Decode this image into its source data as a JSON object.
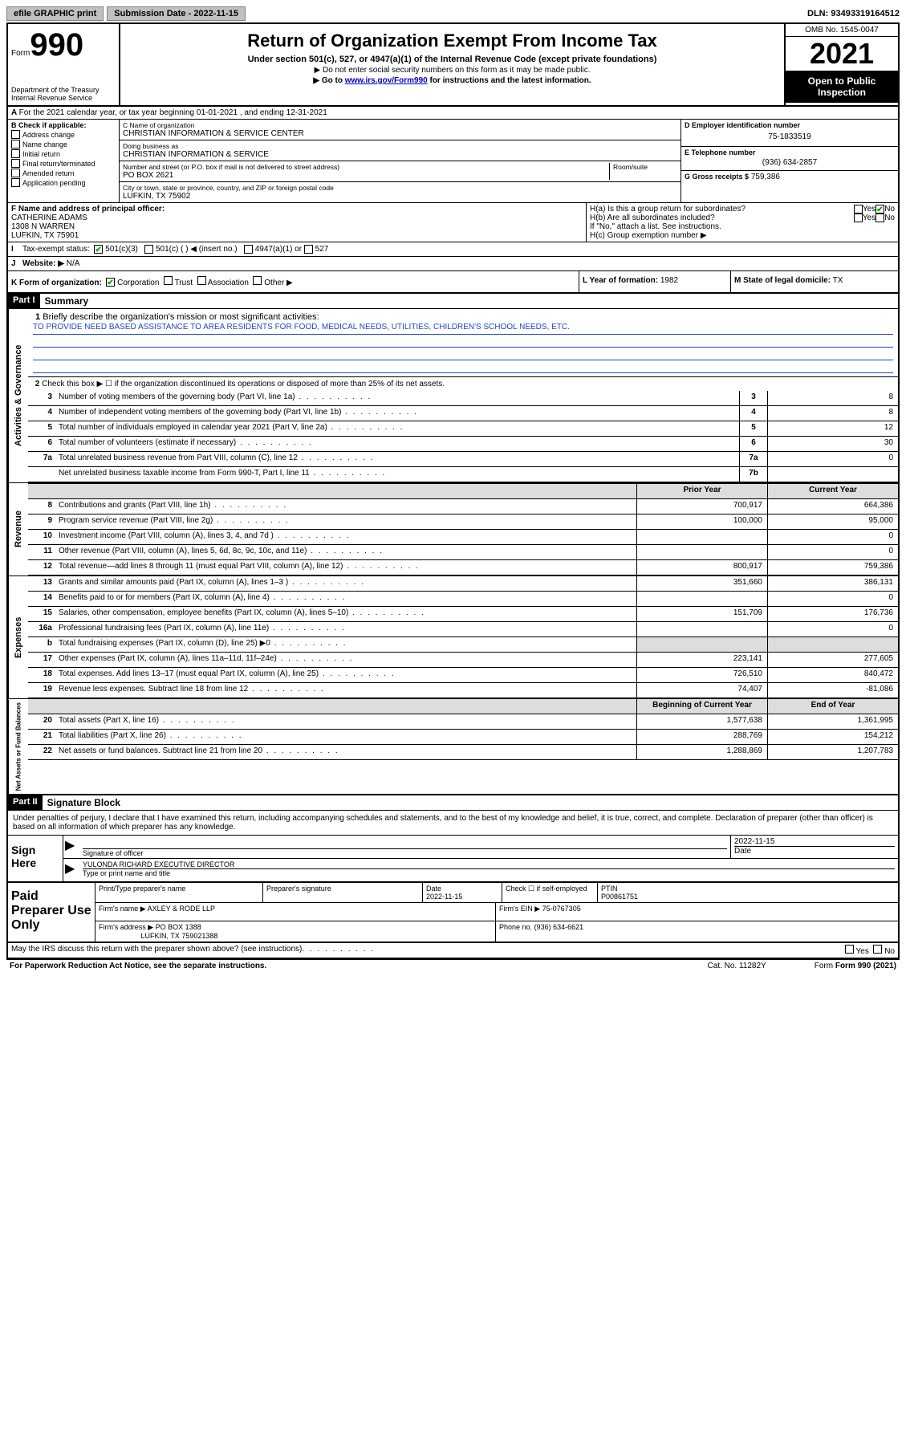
{
  "topbar": {
    "efile_label": "efile GRAPHIC print",
    "sub_date_lbl": "Submission Date - 2022-11-15",
    "dln": "DLN: 93493319164512"
  },
  "header": {
    "form_word": "Form",
    "form_num": "990",
    "dept": "Department of the Treasury",
    "irs": "Internal Revenue Service",
    "title": "Return of Organization Exempt From Income Tax",
    "sub": "Under section 501(c), 527, or 4947(a)(1) of the Internal Revenue Code (except private foundations)",
    "note1": "▶ Do not enter social security numbers on this form as it may be made public.",
    "note2_pre": "▶ Go to ",
    "note2_link": "www.irs.gov/Form990",
    "note2_post": " for instructions and the latest information.",
    "omb": "OMB No. 1545-0047",
    "year": "2021",
    "pub": "Open to Public Inspection"
  },
  "periodA": "For the 2021 calendar year, or tax year beginning 01-01-2021   , and ending 12-31-2021",
  "boxB": {
    "hdr": "B Check if applicable:",
    "opts": [
      "Address change",
      "Name change",
      "Initial return",
      "Final return/terminated",
      "Amended return",
      "Application pending"
    ]
  },
  "boxC": {
    "name_lbl": "C Name of organization",
    "name": "CHRISTIAN INFORMATION & SERVICE CENTER",
    "dba_lbl": "Doing business as",
    "dba": "CHRISTIAN INFORMATION & SERVICE",
    "addr_lbl": "Number and street (or P.O. box if mail is not delivered to street address)",
    "room_lbl": "Room/suite",
    "addr": "PO BOX 2621",
    "city_lbl": "City or town, state or province, country, and ZIP or foreign postal code",
    "city": "LUFKIN, TX  75902"
  },
  "boxD": {
    "lbl": "D Employer identification number",
    "val": "75-1833519"
  },
  "boxE": {
    "lbl": "E Telephone number",
    "val": "(936) 634-2857"
  },
  "boxG": {
    "lbl": "G Gross receipts $",
    "val": "759,386"
  },
  "boxF": {
    "lbl": "F Name and address of principal officer:",
    "name": "CATHERINE ADAMS",
    "addr1": "1308 N WARREN",
    "addr2": "LUFKIN, TX  75901"
  },
  "boxH": {
    "a": "H(a)  Is this a group return for subordinates?",
    "b": "H(b)  Are all subordinates included?",
    "note": "If \"No,\" attach a list. See instructions.",
    "c": "H(c)  Group exemption number ▶",
    "yes": "Yes",
    "no": "No"
  },
  "boxI": {
    "lbl": "Tax-exempt status:",
    "o1": "501(c)(3)",
    "o2": "501(c) (  ) ◀ (insert no.)",
    "o3": "4947(a)(1) or",
    "o4": "527"
  },
  "boxJ": {
    "lbl": "Website: ▶",
    "val": "N/A"
  },
  "boxK": {
    "lbl": "K Form of organization:",
    "corp": "Corporation",
    "trust": "Trust",
    "assoc": "Association",
    "other": "Other ▶"
  },
  "boxL": {
    "lbl": "L Year of formation:",
    "val": "1982"
  },
  "boxM": {
    "lbl": "M State of legal domicile:",
    "val": "TX"
  },
  "part1": {
    "hdr": "Part I",
    "title": "Summary",
    "line1_lbl": "Briefly describe the organization's mission or most significant activities:",
    "mission": "TO PROVIDE NEED BASED ASSISTANCE TO AREA RESIDENTS FOR FOOD, MEDICAL NEEDS, UTILITIES, CHILDREN'S SCHOOL NEEDS, ETC.",
    "line2": "Check this box ▶ ☐  if the organization discontinued its operations or disposed of more than 25% of its net assets.",
    "rows": [
      {
        "n": "3",
        "d": "Number of voting members of the governing body (Part VI, line 1a)",
        "box": "3",
        "v": "8"
      },
      {
        "n": "4",
        "d": "Number of independent voting members of the governing body (Part VI, line 1b)",
        "box": "4",
        "v": "8"
      },
      {
        "n": "5",
        "d": "Total number of individuals employed in calendar year 2021 (Part V, line 2a)",
        "box": "5",
        "v": "12"
      },
      {
        "n": "6",
        "d": "Total number of volunteers (estimate if necessary)",
        "box": "6",
        "v": "30"
      },
      {
        "n": "7a",
        "d": "Total unrelated business revenue from Part VIII, column (C), line 12",
        "box": "7a",
        "v": "0"
      },
      {
        "n": "",
        "d": "Net unrelated business taxable income from Form 990-T, Part I, line 11",
        "box": "7b",
        "v": ""
      }
    ],
    "fin_hdr1": "Prior Year",
    "fin_hdr2": "Current Year",
    "rev": [
      {
        "n": "8",
        "d": "Contributions and grants (Part VIII, line 1h)",
        "p": "700,917",
        "c": "664,386"
      },
      {
        "n": "9",
        "d": "Program service revenue (Part VIII, line 2g)",
        "p": "100,000",
        "c": "95,000"
      },
      {
        "n": "10",
        "d": "Investment income (Part VIII, column (A), lines 3, 4, and 7d )",
        "p": "",
        "c": "0"
      },
      {
        "n": "11",
        "d": "Other revenue (Part VIII, column (A), lines 5, 6d, 8c, 9c, 10c, and 11e)",
        "p": "",
        "c": "0"
      },
      {
        "n": "12",
        "d": "Total revenue—add lines 8 through 11 (must equal Part VIII, column (A), line 12)",
        "p": "800,917",
        "c": "759,386"
      }
    ],
    "exp": [
      {
        "n": "13",
        "d": "Grants and similar amounts paid (Part IX, column (A), lines 1–3 )",
        "p": "351,660",
        "c": "386,131"
      },
      {
        "n": "14",
        "d": "Benefits paid to or for members (Part IX, column (A), line 4)",
        "p": "",
        "c": "0"
      },
      {
        "n": "15",
        "d": "Salaries, other compensation, employee benefits (Part IX, column (A), lines 5–10)",
        "p": "151,709",
        "c": "176,736"
      },
      {
        "n": "16a",
        "d": "Professional fundraising fees (Part IX, column (A), line 11e)",
        "p": "",
        "c": "0"
      },
      {
        "n": "b",
        "d": "Total fundraising expenses (Part IX, column (D), line 25) ▶0",
        "p": "",
        "c": "",
        "grey": true
      },
      {
        "n": "17",
        "d": "Other expenses (Part IX, column (A), lines 11a–11d, 11f–24e)",
        "p": "223,141",
        "c": "277,605"
      },
      {
        "n": "18",
        "d": "Total expenses. Add lines 13–17 (must equal Part IX, column (A), line 25)",
        "p": "726,510",
        "c": "840,472"
      },
      {
        "n": "19",
        "d": "Revenue less expenses. Subtract line 18 from line 12",
        "p": "74,407",
        "c": "-81,086"
      }
    ],
    "na_hdr1": "Beginning of Current Year",
    "na_hdr2": "End of Year",
    "na": [
      {
        "n": "20",
        "d": "Total assets (Part X, line 16)",
        "p": "1,577,638",
        "c": "1,361,995"
      },
      {
        "n": "21",
        "d": "Total liabilities (Part X, line 26)",
        "p": "288,769",
        "c": "154,212"
      },
      {
        "n": "22",
        "d": "Net assets or fund balances. Subtract line 21 from line 20",
        "p": "1,288,869",
        "c": "1,207,783"
      }
    ],
    "side1": "Activities & Governance",
    "side2": "Revenue",
    "side3": "Expenses",
    "side4": "Net Assets or Fund Balances"
  },
  "part2": {
    "hdr": "Part II",
    "title": "Signature Block",
    "penalty": "Under penalties of perjury, I declare that I have examined this return, including accompanying schedules and statements, and to the best of my knowledge and belief, it is true, correct, and complete. Declaration of preparer (other than officer) is based on all information of which preparer has any knowledge."
  },
  "sign": {
    "lbl": "Sign Here",
    "sig_lbl": "Signature of officer",
    "date": "2022-11-15",
    "date_lbl": "Date",
    "name": "YULONDA RICHARD  EXECUTIVE DIRECTOR",
    "name_lbl": "Type or print name and title"
  },
  "prep": {
    "lbl": "Paid Preparer Use Only",
    "r1": {
      "c1": "Print/Type preparer's name",
      "c2": "Preparer's signature",
      "c3": "Date",
      "c3v": "2022-11-15",
      "c4": "Check ☐ if self-employed",
      "c5": "PTIN",
      "c5v": "P00861751"
    },
    "r2": {
      "lbl": "Firm's name    ▶",
      "v": "AXLEY & RODE LLP",
      "ein_lbl": "Firm's EIN ▶",
      "ein": "75-0767305"
    },
    "r3": {
      "lbl": "Firm's address ▶",
      "v1": "PO BOX 1388",
      "v2": "LUFKIN, TX  759021388",
      "ph_lbl": "Phone no.",
      "ph": "(936) 634-6621"
    }
  },
  "footer": {
    "discuss": "May the IRS discuss this return with the preparer shown above? (see instructions)",
    "yes": "Yes",
    "no": "No",
    "paperwork": "For Paperwork Reduction Act Notice, see the separate instructions.",
    "cat": "Cat. No. 11282Y",
    "form": "Form 990 (2021)"
  }
}
